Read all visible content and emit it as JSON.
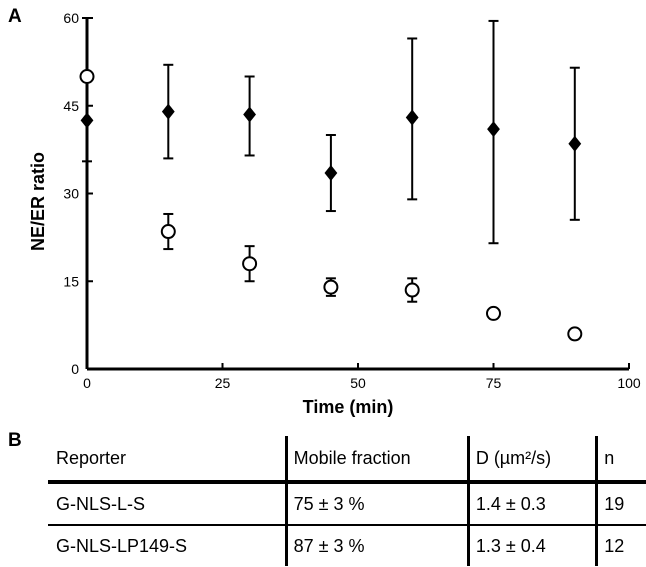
{
  "panels": {
    "a": "A",
    "b": "B"
  },
  "chart_data": {
    "type": "scatter",
    "title": "",
    "xlabel": "Time (min)",
    "ylabel": "NE/ER ratio",
    "xlim": [
      0,
      100
    ],
    "ylim": [
      0,
      60
    ],
    "x_ticks": [
      "0",
      "25",
      "50",
      "75",
      "100"
    ],
    "y_ticks": [
      "0",
      "15",
      "30",
      "45",
      "60"
    ],
    "grid": false,
    "series": [
      {
        "marker": "filled-diamond",
        "color": "#000000",
        "x": [
          0,
          15,
          30,
          45,
          60,
          75,
          90
        ],
        "y": [
          42.5,
          44,
          43.5,
          33.5,
          43,
          41,
          38.5
        ],
        "err_low": [
          7,
          8,
          7,
          6.5,
          14,
          19.5,
          13
        ],
        "err_high": [
          17.5,
          8,
          6.5,
          6.5,
          13.5,
          18.5,
          13
        ]
      },
      {
        "marker": "open-circle",
        "color": "#000000",
        "x": [
          0,
          15,
          30,
          45,
          60,
          75,
          90
        ],
        "y": [
          50,
          23.5,
          18,
          14,
          13.5,
          9.5,
          6
        ],
        "err_low": [
          0,
          3,
          3,
          1.5,
          2,
          0.5,
          0.5
        ],
        "err_high": [
          0,
          3,
          3,
          1.5,
          2,
          0.5,
          0.5
        ]
      }
    ]
  },
  "table": {
    "headers": [
      "Reporter",
      "Mobile fraction",
      "D (µm²/s)",
      "n"
    ],
    "rows": [
      [
        "G-NLS-L-S",
        "75 ± 3 %",
        "1.4 ± 0.3",
        "19"
      ],
      [
        "G-NLS-LP149-S",
        "87 ± 3 %",
        "1.3 ± 0.4",
        "12"
      ]
    ]
  }
}
